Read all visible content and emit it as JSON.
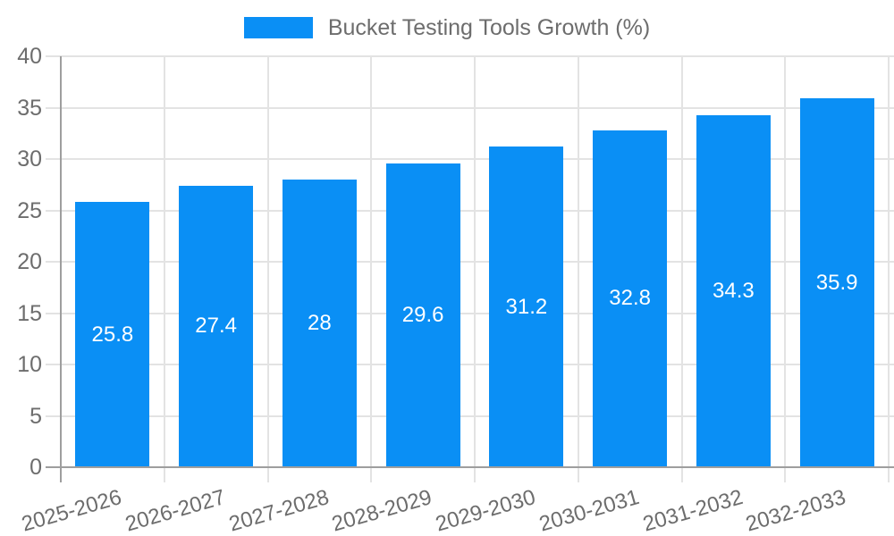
{
  "chart_data": {
    "type": "bar",
    "title": "Bucket Testing Tools Growth (%)",
    "legend": [
      "Bucket Testing Tools Growth (%)"
    ],
    "legend_position": "top",
    "categories": [
      "2025-2026",
      "2026-2027",
      "2027-2028",
      "2028-2029",
      "2029-2030",
      "2030-2031",
      "2031-2032",
      "2032-2033"
    ],
    "series": [
      {
        "name": "Bucket Testing Tools Growth (%)",
        "values": [
          25.8,
          27.4,
          28,
          29.6,
          31.2,
          32.8,
          34.3,
          35.9
        ]
      }
    ],
    "value_labels": [
      "25.8",
      "27.4",
      "28",
      "29.6",
      "31.2",
      "32.8",
      "34.3",
      "35.9"
    ],
    "xlabel": "",
    "ylabel": "",
    "ylim": [
      0,
      40
    ],
    "yticks": [
      0,
      5,
      10,
      15,
      20,
      25,
      30,
      35,
      40
    ],
    "ytick_labels": [
      "0",
      "5",
      "10",
      "15",
      "20",
      "25",
      "30",
      "35",
      "40"
    ],
    "grid": true,
    "x_tick_rotation_deg": -16,
    "colors": {
      "bar": "#0a8ff5",
      "value_label": "#ffffff",
      "axis_text": "#6d6d6d",
      "axis_line": "#9e9e9e",
      "gridline": "#e3e3e3",
      "background": "#ffffff"
    }
  }
}
